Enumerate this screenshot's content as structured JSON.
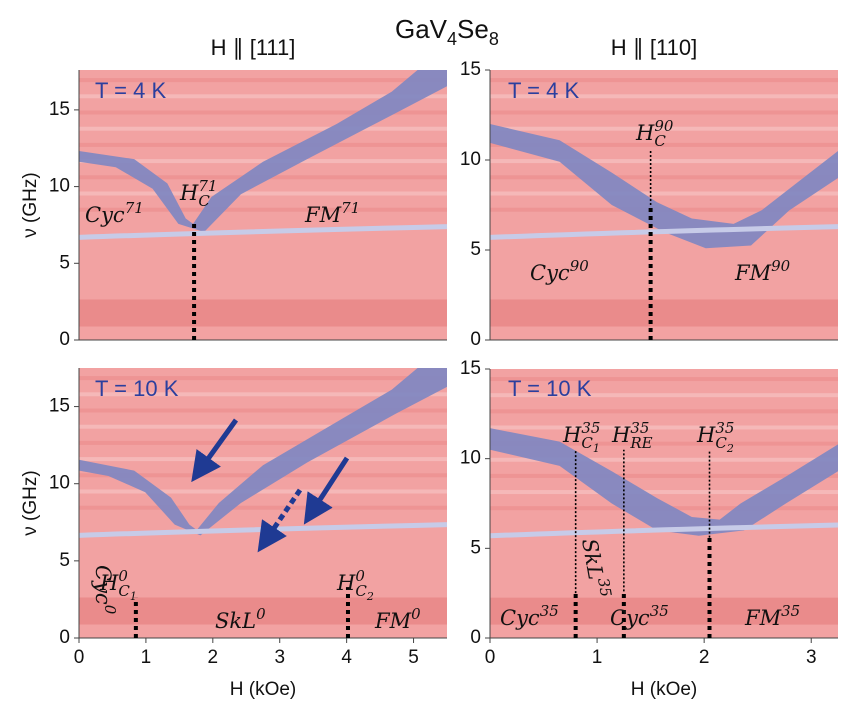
{
  "title": {
    "parts": [
      "GaV",
      "4",
      "Se",
      "8"
    ]
  },
  "chart_data": [
    {
      "type": "heatmap",
      "title": "H ∥ [111]",
      "temperature_label": "T = 4 K",
      "ylabel": "ν (GHz)",
      "xlim": [
        0,
        5.5
      ],
      "ylim": [
        0,
        17.6
      ],
      "yticks": [
        0,
        5,
        10,
        15
      ],
      "markers": [
        {
          "x": 1.72,
          "y": [
            0,
            7.6
          ],
          "style": "thick"
        }
      ],
      "annotations": [
        {
          "base": "Cyc",
          "sup": "71"
        },
        {
          "base": "H",
          "sub": "C",
          "sup": "71"
        },
        {
          "base": "FM",
          "sup": "71"
        }
      ]
    },
    {
      "type": "heatmap",
      "title": "H ∥ [110]",
      "temperature_label": "T = 4 K",
      "xlim": [
        0,
        3.25
      ],
      "ylim": [
        0,
        15
      ],
      "yticks": [
        0,
        5,
        10,
        15
      ],
      "markers": [
        {
          "x": 1.5,
          "y": [
            0,
            7.5
          ],
          "style": "thick"
        },
        {
          "x": 1.5,
          "y": [
            7.5,
            10.5
          ],
          "style": "thin"
        }
      ],
      "annotations": [
        {
          "base": "H",
          "sub": "C",
          "sup": "90"
        },
        {
          "base": "Cyc",
          "sup": "90"
        },
        {
          "base": "FM",
          "sup": "90"
        }
      ]
    },
    {
      "type": "heatmap",
      "temperature_label": "T = 10 K",
      "ylabel": "ν (GHz)",
      "xlabel": "H (kOe)",
      "xlim": [
        0,
        5.5
      ],
      "xticks": [
        0,
        1,
        2,
        3,
        4,
        5
      ],
      "ylim": [
        0,
        17.5
      ],
      "yticks": [
        0,
        5,
        10,
        15
      ],
      "markers": [
        {
          "x": 0.85,
          "y": [
            0,
            2.6
          ],
          "style": "thick"
        },
        {
          "x": 4.02,
          "y": [
            0,
            3.3
          ],
          "style": "thick"
        }
      ],
      "annotations": [
        {
          "base": "H",
          "sub": "C",
          "subsub": "1",
          "sup": "0"
        },
        {
          "base": "H",
          "sub": "C",
          "subsub": "2",
          "sup": "0"
        },
        {
          "base": "Cyc",
          "sup": "0"
        },
        {
          "base": "SkL",
          "sup": "0"
        },
        {
          "base": "FM",
          "sup": "0"
        }
      ]
    },
    {
      "type": "heatmap",
      "temperature_label": "T = 10 K",
      "xlabel": "H (kOe)",
      "xlim": [
        0,
        3.25
      ],
      "xticks": [
        0,
        1,
        2,
        3
      ],
      "ylim": [
        0,
        15
      ],
      "yticks": [
        0,
        5,
        10,
        15
      ],
      "markers": [
        {
          "x": 0.8,
          "y": [
            0,
            2.5
          ],
          "style": "thick"
        },
        {
          "x": 0.8,
          "y": [
            2.5,
            10.5
          ],
          "style": "thin"
        },
        {
          "x": 1.25,
          "y": [
            0,
            2.6
          ],
          "style": "thick"
        },
        {
          "x": 1.25,
          "y": [
            2.6,
            10.5
          ],
          "style": "thin"
        },
        {
          "x": 2.05,
          "y": [
            0,
            5.6
          ],
          "style": "thick"
        },
        {
          "x": 2.05,
          "y": [
            5.6,
            10.5
          ],
          "style": "thin"
        }
      ],
      "annotations": [
        {
          "base": "H",
          "sub": "C",
          "subsub": "1",
          "sup": "35"
        },
        {
          "base": "H",
          "sub": "RE",
          "sup": "35"
        },
        {
          "base": "H",
          "sub": "C",
          "subsub": "2",
          "sup": "35"
        },
        {
          "base": "SkL",
          "sup": "35"
        },
        {
          "base": "Cyc",
          "sup": "35"
        },
        {
          "base": "Cyc",
          "sup": "35"
        },
        {
          "base": "FM",
          "sup": "35"
        }
      ]
    }
  ]
}
